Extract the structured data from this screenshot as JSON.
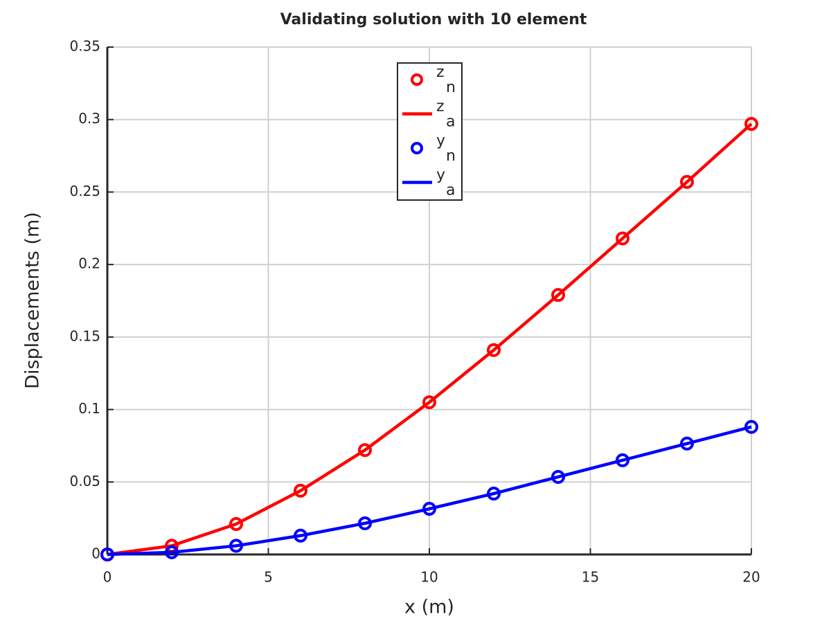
{
  "chart_data": {
    "type": "line",
    "title": "Validating solution with 10 element",
    "xlabel": "x (m)",
    "ylabel": "Displacements (m)",
    "x": [
      0,
      2,
      4,
      6,
      8,
      10,
      12,
      14,
      16,
      18,
      20
    ],
    "series": [
      {
        "name": "z",
        "subscript": "n",
        "style": "marker",
        "color": "#ff0000",
        "values": [
          0,
          0.006,
          0.021,
          0.044,
          0.072,
          0.105,
          0.141,
          0.179,
          0.218,
          0.257,
          0.297
        ]
      },
      {
        "name": "z",
        "subscript": "a",
        "style": "line",
        "color": "#ff0000",
        "values": [
          0,
          0.006,
          0.021,
          0.044,
          0.072,
          0.105,
          0.141,
          0.179,
          0.218,
          0.257,
          0.297
        ]
      },
      {
        "name": "y",
        "subscript": "n",
        "style": "marker",
        "color": "#0000ff",
        "values": [
          0,
          0.0015,
          0.006,
          0.013,
          0.0215,
          0.0315,
          0.042,
          0.0535,
          0.065,
          0.0765,
          0.088
        ]
      },
      {
        "name": "y",
        "subscript": "a",
        "style": "line",
        "color": "#0000ff",
        "values": [
          0,
          0.0015,
          0.006,
          0.013,
          0.0215,
          0.0315,
          0.042,
          0.0535,
          0.065,
          0.0765,
          0.088
        ]
      }
    ],
    "xlim": [
      0,
      20
    ],
    "xticks": [
      0,
      5,
      10,
      15,
      20
    ],
    "ylim": [
      0,
      0.35
    ],
    "yticks": [
      0,
      0.05,
      0.1,
      0.15,
      0.2,
      0.25,
      0.3,
      0.35
    ],
    "grid": true,
    "legend": "top"
  }
}
